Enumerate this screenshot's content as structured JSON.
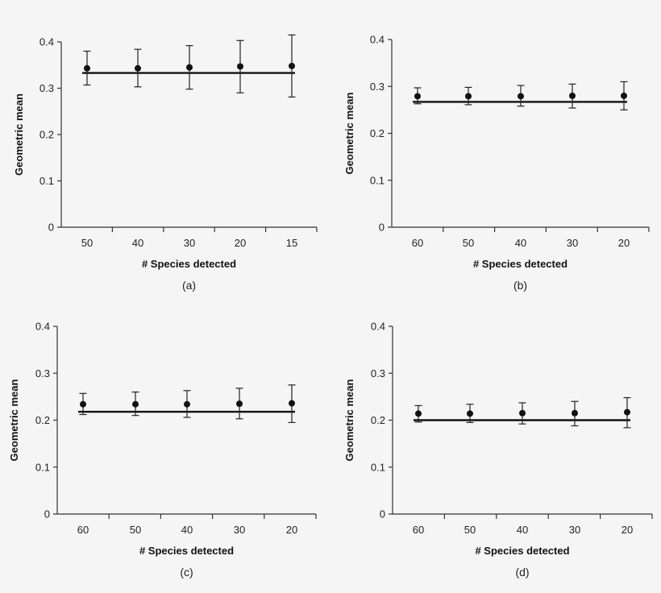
{
  "chart_data": [
    {
      "type": "scatter",
      "panel_label": "(a)",
      "xlabel": "# Species detected",
      "ylabel": "Geometric mean",
      "categories": [
        "50",
        "40",
        "30",
        "20",
        "15"
      ],
      "ylim": [
        0,
        0.4
      ],
      "yticks": [
        "0",
        "0.1",
        "0.2",
        "0.3",
        "0.4"
      ],
      "values": [
        0.343,
        0.343,
        0.345,
        0.347,
        0.348
      ],
      "error_low": [
        0.307,
        0.303,
        0.298,
        0.29,
        0.281
      ],
      "error_high": [
        0.38,
        0.384,
        0.392,
        0.403,
        0.415
      ],
      "reference_line": 0.333
    },
    {
      "type": "scatter",
      "panel_label": "(b)",
      "xlabel": "# Species detected",
      "ylabel": "Geometric mean",
      "categories": [
        "60",
        "50",
        "40",
        "30",
        "20"
      ],
      "ylim": [
        0,
        0.4
      ],
      "yticks": [
        "0",
        "0.1",
        "0.2",
        "0.3",
        "0.4"
      ],
      "values": [
        0.279,
        0.279,
        0.279,
        0.28,
        0.28
      ],
      "error_low": [
        0.263,
        0.261,
        0.258,
        0.254,
        0.25
      ],
      "error_high": [
        0.297,
        0.298,
        0.302,
        0.305,
        0.31
      ],
      "reference_line": 0.267
    },
    {
      "type": "scatter",
      "panel_label": "(c)",
      "xlabel": "# Species detected",
      "ylabel": "Geometric mean",
      "categories": [
        "60",
        "50",
        "40",
        "30",
        "20"
      ],
      "ylim": [
        0,
        0.4
      ],
      "yticks": [
        "0",
        "0.1",
        "0.2",
        "0.3",
        "0.4"
      ],
      "values": [
        0.234,
        0.234,
        0.234,
        0.235,
        0.236
      ],
      "error_low": [
        0.212,
        0.21,
        0.206,
        0.203,
        0.195
      ],
      "error_high": [
        0.257,
        0.26,
        0.263,
        0.268,
        0.275
      ],
      "reference_line": 0.218
    },
    {
      "type": "scatter",
      "panel_label": "(d)",
      "xlabel": "# Species detected",
      "ylabel": "Geometric mean",
      "categories": [
        "60",
        "50",
        "40",
        "30",
        "20"
      ],
      "ylim": [
        0,
        0.4
      ],
      "yticks": [
        "0",
        "0.1",
        "0.2",
        "0.3",
        "0.4"
      ],
      "values": [
        0.214,
        0.214,
        0.215,
        0.215,
        0.217
      ],
      "error_low": [
        0.196,
        0.195,
        0.192,
        0.188,
        0.184
      ],
      "error_high": [
        0.231,
        0.234,
        0.237,
        0.24,
        0.248
      ],
      "reference_line": 0.2
    }
  ]
}
